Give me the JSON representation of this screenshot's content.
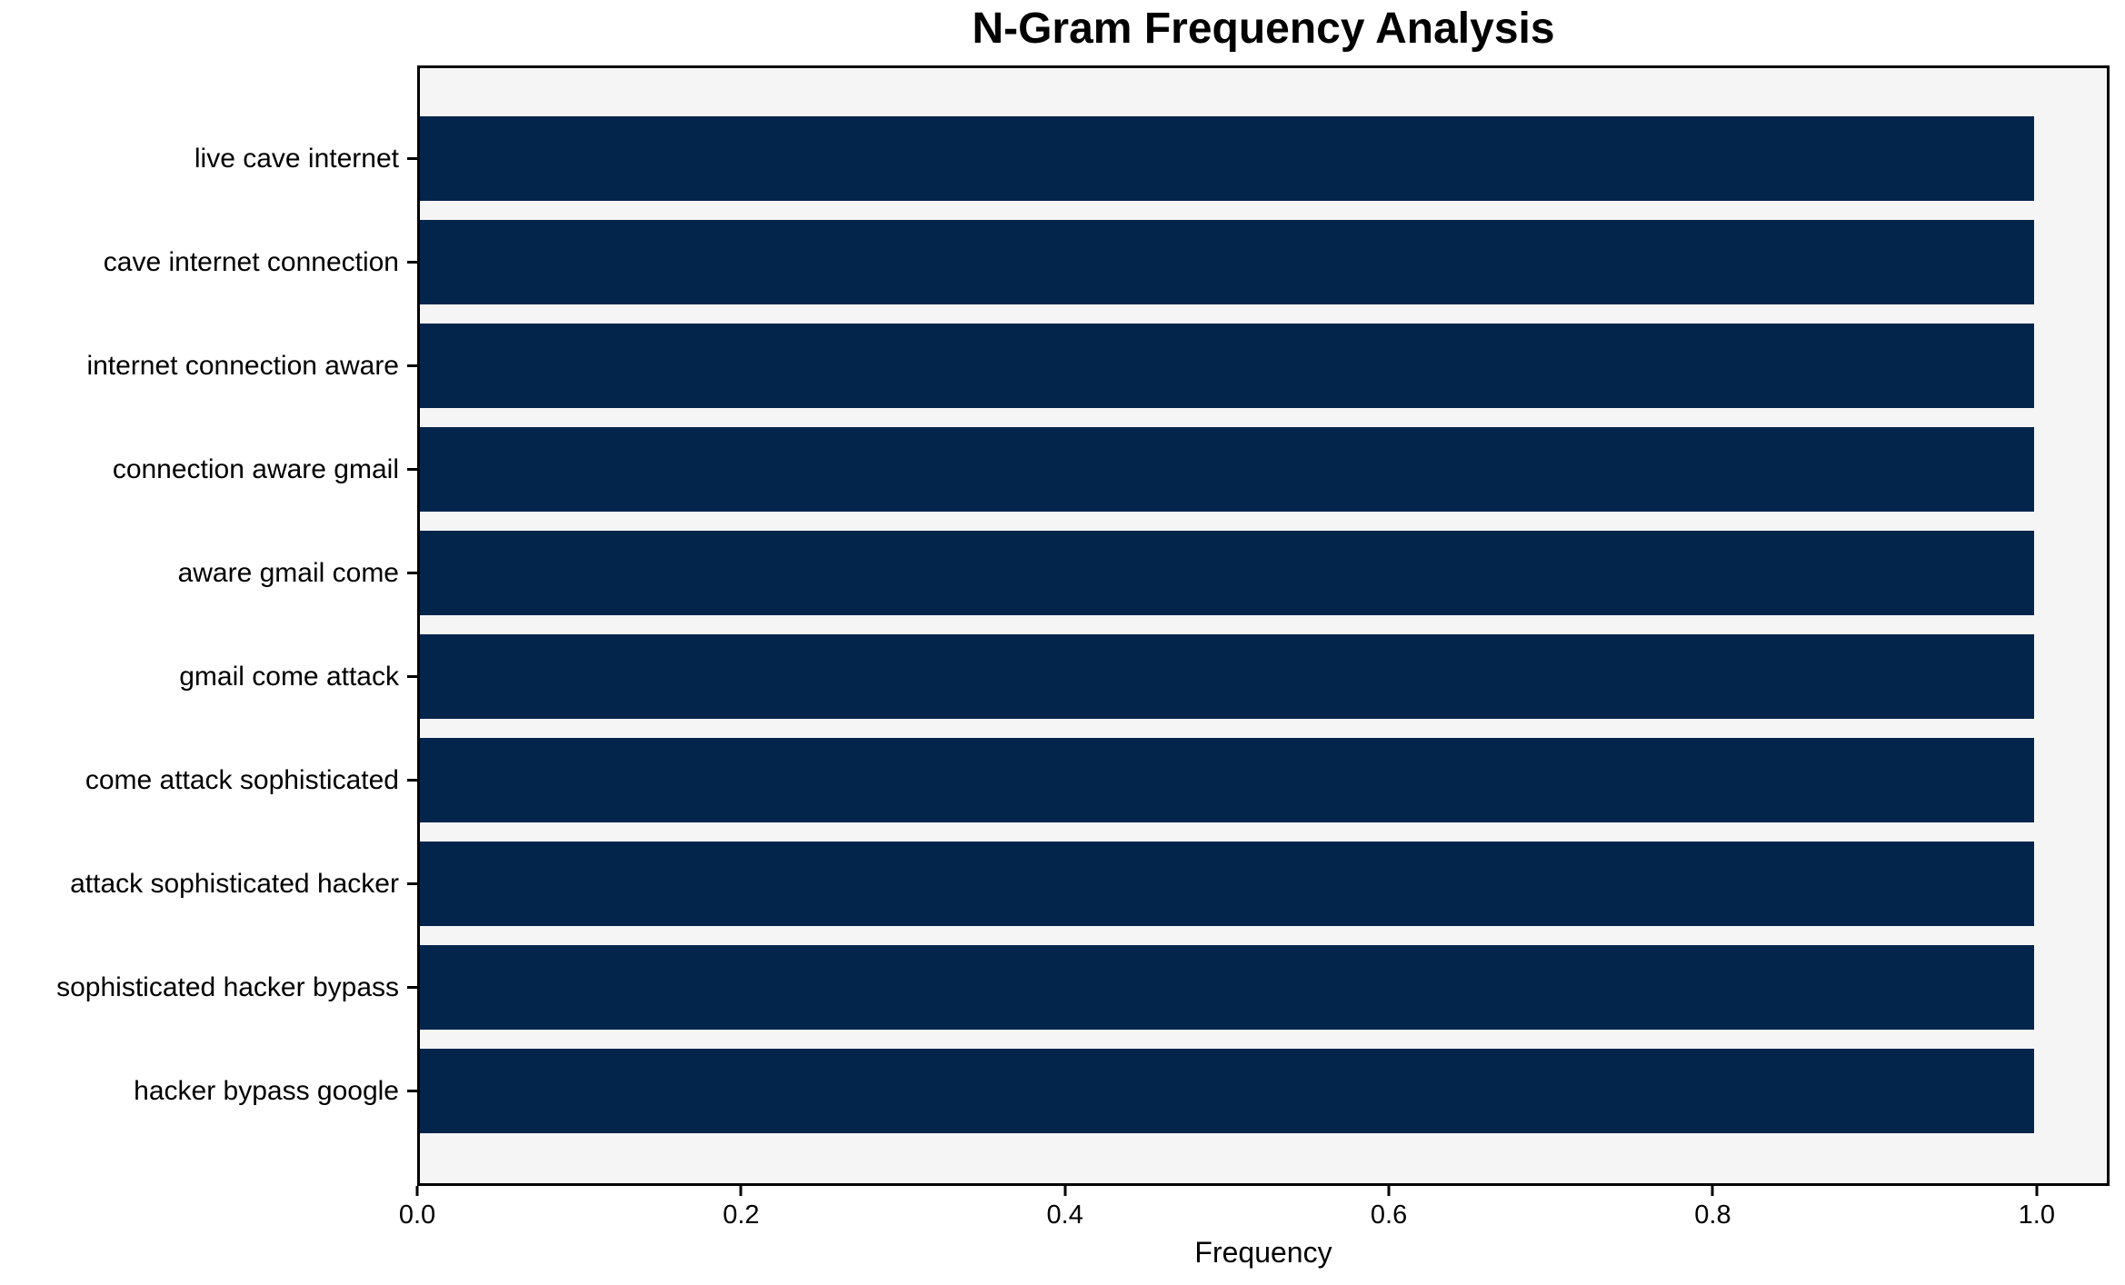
{
  "chart_data": {
    "type": "bar",
    "orientation": "horizontal",
    "title": "N-Gram Frequency Analysis",
    "xlabel": "Frequency",
    "ylabel": "",
    "categories": [
      "live cave internet",
      "cave internet connection",
      "internet connection aware",
      "connection aware gmail",
      "aware gmail come",
      "gmail come attack",
      "come attack sophisticated",
      "attack sophisticated hacker",
      "sophisticated hacker bypass",
      "hacker bypass google"
    ],
    "values": [
      1.0,
      1.0,
      1.0,
      1.0,
      1.0,
      1.0,
      1.0,
      1.0,
      1.0,
      1.0
    ],
    "xlim": [
      0,
      1.045
    ],
    "xticks": [
      0.0,
      0.2,
      0.4,
      0.6,
      0.8,
      1.0
    ],
    "xtick_labels": [
      "0.0",
      "0.2",
      "0.4",
      "0.6",
      "0.8",
      "1.0"
    ],
    "grid": false,
    "legend": "none",
    "colors": {
      "bar": "#03254c",
      "plot_background": "#f5f5f6",
      "figure_background": "#ffffff",
      "spine": "#000000",
      "text": "#000000"
    }
  }
}
